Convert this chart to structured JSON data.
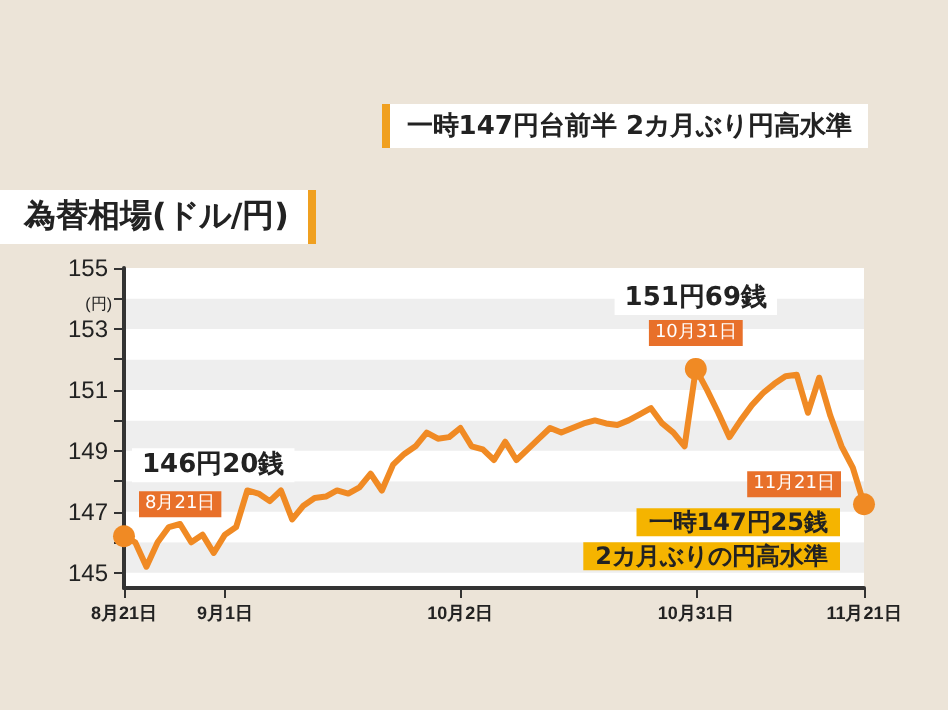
{
  "chart_data": {
    "type": "line",
    "title": "為替相場(ドル/円)",
    "subtitle": "一時147円台前半 2カ月ぶり円高水準",
    "ylabel": "(円)",
    "categories": [
      "8月21日",
      null,
      null,
      null,
      null,
      null,
      null,
      null,
      null,
      "9月1日",
      null,
      null,
      null,
      null,
      null,
      null,
      null,
      null,
      null,
      null,
      null,
      null,
      null,
      null,
      null,
      null,
      null,
      null,
      null,
      null,
      "10月2日",
      null,
      null,
      null,
      null,
      null,
      null,
      null,
      null,
      null,
      null,
      null,
      null,
      null,
      null,
      null,
      null,
      null,
      null,
      null,
      null,
      "10月31日",
      null,
      null,
      null,
      null,
      null,
      null,
      null,
      null,
      null,
      null,
      null,
      null,
      null,
      null,
      "11月21日"
    ],
    "series": [
      {
        "color": "#f08a24",
        "values": [
          146.2,
          146.0,
          145.2,
          146.0,
          146.5,
          146.6,
          146.0,
          146.25,
          145.65,
          146.25,
          146.5,
          147.7,
          147.6,
          147.35,
          147.7,
          146.75,
          147.2,
          147.45,
          147.5,
          147.7,
          147.6,
          147.8,
          148.25,
          147.7,
          148.55,
          148.9,
          149.15,
          149.6,
          149.4,
          149.45,
          149.75,
          149.15,
          149.05,
          148.7,
          149.3,
          148.7,
          149.05,
          149.4,
          149.75,
          149.6,
          149.75,
          149.9,
          150.0,
          149.9,
          149.85,
          150.0,
          150.2,
          150.4,
          149.9,
          149.6,
          149.15,
          151.69,
          151.0,
          150.25,
          149.45,
          150.0,
          150.5,
          150.9,
          151.2,
          151.45,
          151.5,
          150.25,
          151.4,
          150.15,
          149.15,
          148.45,
          147.25
        ]
      }
    ],
    "ylim": [
      144.5,
      155
    ],
    "yticks": [
      145,
      {
        "value": 146,
        "label": null
      },
      147,
      {
        "value": 148,
        "label": null
      },
      149,
      {
        "value": 150,
        "label": null
      },
      151,
      {
        "value": 152,
        "label": null
      },
      153,
      {
        "value": 154,
        "label": null
      },
      155
    ],
    "marker": "none",
    "line_style": "solid",
    "annotations": [
      {
        "text": "8月21日",
        "x": "8月21日",
        "y": 146.2
      },
      {
        "text": "10月31日",
        "x": "10月31日",
        "y": 151.69
      },
      {
        "text": "11月21日",
        "x": "11月21日",
        "y": 147.25
      },
      "146円20銭",
      "151円69銭",
      "一時147円25銭",
      "2カ月ぶりの円高水準"
    ]
  }
}
